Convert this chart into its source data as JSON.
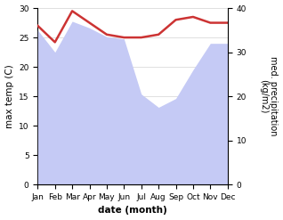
{
  "months": [
    "Jan",
    "Feb",
    "Mar",
    "Apr",
    "May",
    "Jun",
    "Jul",
    "Aug",
    "Sep",
    "Oct",
    "Nov",
    "Dec"
  ],
  "max_temp": [
    27.0,
    24.2,
    29.5,
    27.5,
    25.5,
    25.0,
    25.0,
    25.5,
    28.0,
    28.5,
    27.5,
    27.5
  ],
  "precipitation": [
    35.0,
    30.0,
    37.0,
    35.5,
    33.5,
    33.0,
    20.5,
    17.5,
    19.5,
    26.0,
    32.0,
    32.0
  ],
  "temp_ylim": [
    0,
    30
  ],
  "precip_ylim": [
    0,
    40
  ],
  "temp_color": "#cc3333",
  "precip_fill_color": "#c5caf5",
  "bg_color": "#ffffff",
  "xlabel": "date (month)",
  "ylabel_left": "max temp (C)",
  "ylabel_right": "med. precipitation\n(kg/m2)",
  "axis_label_fontsize": 7.5,
  "tick_fontsize": 6.5,
  "linewidth": 1.8
}
